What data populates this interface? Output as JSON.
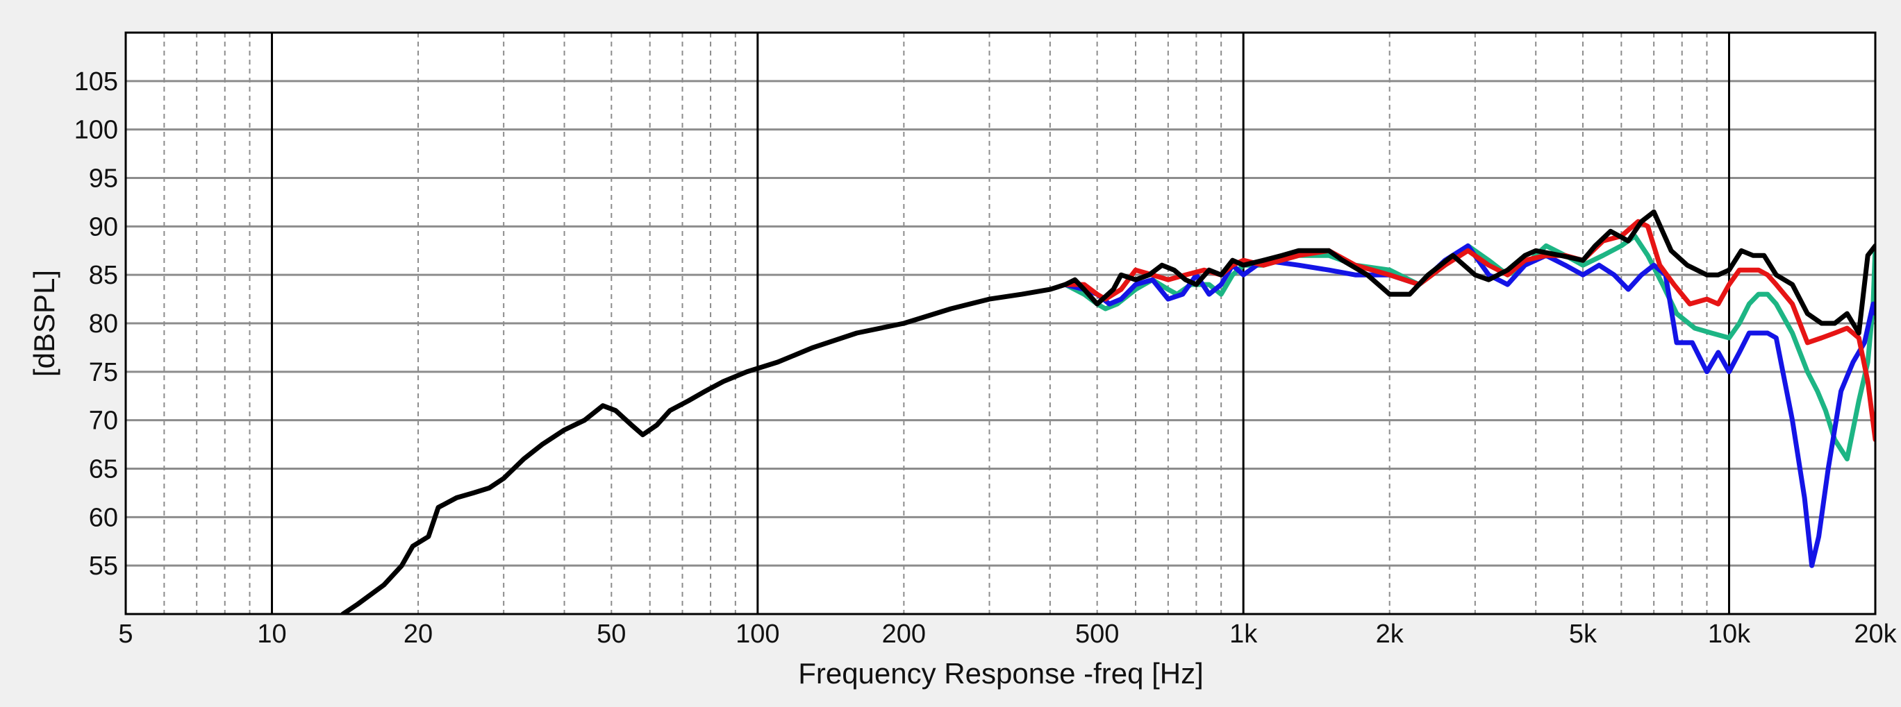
{
  "chart_data": {
    "type": "line",
    "title": "",
    "xlabel": "Frequency Response -freq [Hz]",
    "ylabel": "[dBSPL]",
    "x_scale": "log",
    "xlim": [
      5,
      20000
    ],
    "ylim": [
      50,
      110
    ],
    "x_ticks": [
      {
        "value": 5,
        "label": "5"
      },
      {
        "value": 10,
        "label": "10"
      },
      {
        "value": 20,
        "label": "20"
      },
      {
        "value": 50,
        "label": "50"
      },
      {
        "value": 100,
        "label": "100"
      },
      {
        "value": 200,
        "label": "200"
      },
      {
        "value": 500,
        "label": "500"
      },
      {
        "value": 1000,
        "label": "1k"
      },
      {
        "value": 2000,
        "label": "2k"
      },
      {
        "value": 5000,
        "label": "5k"
      },
      {
        "value": 10000,
        "label": "10k"
      },
      {
        "value": 20000,
        "label": "20k"
      }
    ],
    "y_ticks": [
      {
        "value": 55,
        "label": "55"
      },
      {
        "value": 60,
        "label": "60"
      },
      {
        "value": 65,
        "label": "65"
      },
      {
        "value": 70,
        "label": "70"
      },
      {
        "value": 75,
        "label": "75"
      },
      {
        "value": 80,
        "label": "80"
      },
      {
        "value": 85,
        "label": "85"
      },
      {
        "value": 90,
        "label": "90"
      },
      {
        "value": 95,
        "label": "95"
      },
      {
        "value": 100,
        "label": "100"
      },
      {
        "value": 105,
        "label": "105"
      }
    ],
    "major_x_lines": [
      10,
      100,
      1000,
      10000
    ],
    "minor_x_lines": [
      6,
      7,
      8,
      9,
      20,
      30,
      40,
      50,
      60,
      70,
      80,
      90,
      200,
      300,
      400,
      500,
      600,
      700,
      800,
      900,
      2000,
      3000,
      4000,
      5000,
      6000,
      7000,
      8000,
      9000
    ],
    "grid": true,
    "legend": "none",
    "series": [
      {
        "name": "green",
        "color": "#1db584",
        "x": [
          430,
          470,
          500,
          520,
          550,
          600,
          650,
          700,
          730,
          780,
          850,
          900,
          950,
          1000,
          1100,
          1300,
          1500,
          1700,
          2000,
          2300,
          2600,
          2900,
          3200,
          3500,
          3800,
          4200,
          4600,
          5000,
          5500,
          6000,
          6400,
          6800,
          7300,
          7800,
          8500,
          9200,
          10000,
          10500,
          11000,
          11500,
          12000,
          12500,
          13500,
          14500,
          15200,
          15800,
          16500,
          17500,
          18500,
          19300,
          19800,
          20000
        ],
        "y": [
          84,
          83,
          82,
          81.5,
          82,
          83.5,
          84.5,
          83.5,
          83,
          84,
          84,
          83,
          85,
          86,
          86,
          87,
          87,
          86,
          85.5,
          84,
          86,
          88,
          86.5,
          85,
          86,
          88,
          87,
          86,
          87,
          88,
          89,
          87,
          84,
          81,
          79.5,
          79,
          78.5,
          80,
          82,
          83,
          83,
          82,
          79,
          75,
          73,
          71,
          68,
          66,
          72,
          76,
          82,
          88
        ]
      },
      {
        "name": "blue",
        "color": "#1414e6",
        "x": [
          430,
          470,
          500,
          530,
          560,
          600,
          650,
          700,
          750,
          800,
          850,
          900,
          950,
          1000,
          1100,
          1300,
          1500,
          1700,
          2000,
          2300,
          2600,
          2900,
          3200,
          3500,
          3800,
          4200,
          4600,
          5000,
          5400,
          5800,
          6200,
          6600,
          7000,
          7400,
          7800,
          8400,
          9000,
          9500,
          10000,
          10500,
          11000,
          11500,
          12000,
          12500,
          13500,
          14300,
          14800,
          15300,
          16000,
          17000,
          18000,
          19000,
          19800,
          20000
        ],
        "y": [
          84,
          83.5,
          83,
          82,
          82.5,
          84,
          84.5,
          82.5,
          83,
          85,
          83,
          84,
          86,
          85,
          86.5,
          86,
          85.5,
          85,
          85,
          84,
          86.5,
          88,
          85,
          84,
          86,
          87,
          86,
          85,
          86,
          85,
          83.5,
          85,
          86,
          85,
          78,
          78,
          75,
          77,
          75,
          77,
          79,
          79,
          79,
          78.5,
          70,
          62,
          55,
          58,
          65,
          73,
          76,
          78,
          82,
          81
        ]
      },
      {
        "name": "red",
        "color": "#e61414",
        "x": [
          430,
          470,
          500,
          520,
          560,
          600,
          650,
          700,
          760,
          830,
          900,
          950,
          1000,
          1100,
          1300,
          1500,
          1700,
          2000,
          2300,
          2600,
          2900,
          3200,
          3500,
          3800,
          4200,
          4600,
          5000,
          5500,
          6000,
          6500,
          6800,
          7200,
          7700,
          8300,
          9000,
          9500,
          10000,
          10500,
          11000,
          11500,
          12000,
          12500,
          13500,
          14500,
          15500,
          16500,
          17500,
          18500,
          19300,
          20000
        ],
        "y": [
          84,
          84,
          83,
          82.5,
          83.5,
          85.5,
          85,
          84.5,
          85,
          85.5,
          85,
          86,
          86.5,
          86,
          87,
          87.5,
          86,
          85,
          84,
          86,
          87.5,
          86,
          85,
          86.5,
          87,
          87,
          86.5,
          88.5,
          89,
          90.5,
          90,
          86,
          84,
          82,
          82.5,
          82,
          84,
          85.5,
          85.5,
          85.5,
          85,
          84,
          82,
          78,
          78.5,
          79,
          79.5,
          78.5,
          74,
          68
        ]
      },
      {
        "name": "black",
        "color": "#000000",
        "x": [
          14,
          15,
          17,
          18.5,
          19.5,
          21,
          22,
          24,
          26,
          28,
          30,
          33,
          36,
          40,
          44,
          48,
          51,
          55,
          58,
          62,
          66,
          72,
          78,
          85,
          95,
          110,
          130,
          160,
          200,
          250,
          300,
          350,
          400,
          430,
          450,
          470,
          500,
          540,
          560,
          600,
          640,
          680,
          720,
          760,
          800,
          850,
          900,
          950,
          1000,
          1100,
          1200,
          1300,
          1400,
          1500,
          1600,
          1800,
          2000,
          2200,
          2400,
          2700,
          3000,
          3200,
          3500,
          3800,
          4000,
          4500,
          5000,
          5300,
          5700,
          6200,
          6600,
          7000,
          7600,
          8200,
          9000,
          9500,
          10000,
          10600,
          11200,
          11800,
          12500,
          13500,
          14500,
          15500,
          16500,
          17500,
          18500,
          19300,
          20000
        ],
        "y": [
          50,
          51,
          53,
          55,
          57,
          58,
          61,
          62,
          62.5,
          63,
          64,
          66,
          67.5,
          69,
          70,
          71.5,
          71,
          69.5,
          68.5,
          69.5,
          71,
          72,
          73,
          74,
          75,
          76,
          77.5,
          79,
          80,
          81.5,
          82.5,
          83,
          83.5,
          84,
          84.5,
          83.5,
          82,
          83.5,
          85,
          84.5,
          85,
          86,
          85.5,
          84.5,
          84,
          85.5,
          85,
          86.5,
          86,
          86.5,
          87,
          87.5,
          87.5,
          87.5,
          86.5,
          85,
          83,
          83,
          85,
          87,
          85,
          84.5,
          85.5,
          87,
          87.5,
          87,
          86.5,
          88,
          89.5,
          88.5,
          90.5,
          91.5,
          87.5,
          86,
          85,
          85,
          85.5,
          87.5,
          87,
          87,
          85,
          84,
          81,
          80,
          80,
          81,
          79,
          87,
          88
        ]
      }
    ]
  }
}
